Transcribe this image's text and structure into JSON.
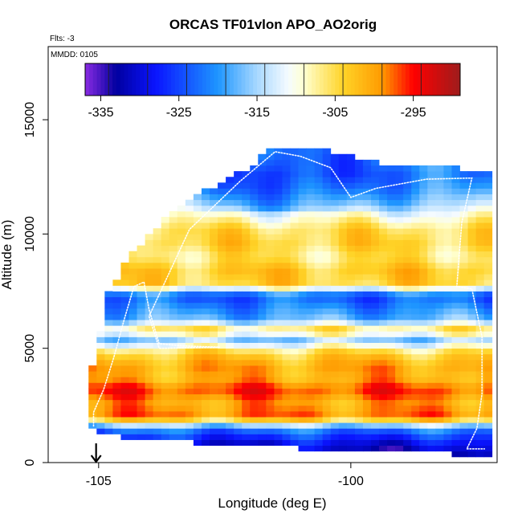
{
  "chart_data": {
    "type": "heatmap",
    "title": "ORCAS TF01vlon APO_AO2orig",
    "xlabel": "Longitude (deg E)",
    "ylabel": "Altitude (m)",
    "xlim": [
      -106.0,
      -97.1
    ],
    "ylim": [
      0,
      18200
    ],
    "x_ticks": [
      -105,
      -100
    ],
    "x_tick_labels": [
      "-105",
      "-100"
    ],
    "y_ticks": [
      0,
      5000,
      10000,
      15000
    ],
    "y_tick_labels": [
      "0",
      "5000",
      "10000",
      "15000"
    ],
    "annotations": {
      "flights": "Flts: -3",
      "date": "MMDD: 0105"
    },
    "marker": {
      "type": "arrow-down",
      "x": -105.05,
      "y_top": 700,
      "y_bottom": 0
    },
    "colorbar": {
      "range": [
        -337,
        -289
      ],
      "ticks": [
        -335,
        -325,
        -315,
        -305,
        -295
      ],
      "tick_labels": [
        "-335",
        "-325",
        "-315",
        "-305",
        "-295"
      ],
      "stops": [
        {
          "v": -337,
          "c": "#8a2be2"
        },
        {
          "v": -333,
          "c": "#0000a0"
        },
        {
          "v": -328,
          "c": "#0a14ff"
        },
        {
          "v": -320,
          "c": "#1e96ff"
        },
        {
          "v": -315,
          "c": "#a8d8ff"
        },
        {
          "v": -311,
          "c": "#f5fbff"
        },
        {
          "v": -309,
          "c": "#ffffd0"
        },
        {
          "v": -304,
          "c": "#ffd428"
        },
        {
          "v": -299,
          "c": "#ff9a00"
        },
        {
          "v": -295,
          "c": "#ff0000"
        },
        {
          "v": -289,
          "c": "#9e1c1c"
        }
      ]
    },
    "grid": {
      "lon_start": -105.2,
      "lon_end": -97.2,
      "lon_step": 0.16,
      "alt_step": 250,
      "alt_top_min": 0,
      "alt_top_max": 13750
    },
    "envelope": {
      "lon": [
        -105.2,
        -105.0,
        -104.8,
        -104.55,
        -104.3,
        -104.0,
        -103.6,
        -103.2,
        -102.6,
        -102.0,
        -101.6,
        -101.0,
        -100.5,
        -100.0,
        -99.5,
        -99.0,
        -98.5,
        -98.0,
        -97.6,
        -97.2
      ],
      "top": [
        3450,
        5250,
        7450,
        8300,
        9100,
        9800,
        10700,
        11400,
        12100,
        12800,
        13700,
        13700,
        13600,
        13300,
        13000,
        12850,
        12800,
        12800,
        12700,
        12700
      ],
      "bottom": [
        1500,
        1500,
        1300,
        1250,
        1200,
        1150,
        1050,
        1000,
        950,
        950,
        800,
        750,
        700,
        650,
        550,
        500,
        500,
        500,
        300,
        300
      ]
    },
    "profile": [
      {
        "alt": 300,
        "value": -334
      },
      {
        "alt": 1000,
        "value": -328
      },
      {
        "alt": 1500,
        "value": -321
      },
      {
        "alt": 2000,
        "value": -298
      },
      {
        "alt": 2600,
        "value": -300
      },
      {
        "alt": 3200,
        "value": -296
      },
      {
        "alt": 3700,
        "value": -301
      },
      {
        "alt": 4200,
        "value": -300
      },
      {
        "alt": 4800,
        "value": -304
      },
      {
        "alt": 5400,
        "value": -316
      },
      {
        "alt": 5800,
        "value": -305
      },
      {
        "alt": 6300,
        "value": -318
      },
      {
        "alt": 6800,
        "value": -321
      },
      {
        "alt": 7300,
        "value": -324
      },
      {
        "alt": 7800,
        "value": -304
      },
      {
        "alt": 8400,
        "value": -303
      },
      {
        "alt": 9000,
        "value": -306
      },
      {
        "alt": 9600,
        "value": -304
      },
      {
        "alt": 10200,
        "value": -305
      },
      {
        "alt": 10800,
        "value": -310
      },
      {
        "alt": 11400,
        "value": -316
      },
      {
        "alt": 12000,
        "value": -320
      },
      {
        "alt": 12600,
        "value": -322
      },
      {
        "alt": 13200,
        "value": -321
      },
      {
        "alt": 13800,
        "value": -319
      }
    ],
    "flight_track": [
      [
        -105.1,
        1600
      ],
      [
        -105.1,
        2200
      ],
      [
        -104.9,
        3200
      ],
      [
        -104.7,
        4600
      ],
      [
        -104.5,
        6200
      ],
      [
        -104.3,
        7700
      ],
      [
        -104.1,
        7900
      ],
      [
        -104.0,
        6700
      ],
      [
        -103.8,
        5200
      ],
      [
        -103.3,
        5100
      ],
      [
        -102.6,
        5050
      ],
      [
        -103.8,
        5000
      ],
      [
        -104.0,
        6400
      ],
      [
        -103.2,
        10200
      ],
      [
        -102.2,
        12300
      ],
      [
        -101.5,
        13600
      ],
      [
        -101.0,
        13400
      ],
      [
        -100.4,
        12900
      ],
      [
        -100.0,
        11600
      ],
      [
        -99.5,
        12000
      ],
      [
        -98.5,
        12400
      ],
      [
        -97.6,
        12450
      ],
      [
        -97.8,
        10500
      ],
      [
        -97.9,
        7700
      ],
      [
        -97.6,
        7600
      ],
      [
        -97.4,
        5500
      ],
      [
        -97.4,
        3000
      ],
      [
        -97.5,
        1500
      ],
      [
        -97.7,
        600
      ],
      [
        -97.35,
        600
      ]
    ]
  }
}
